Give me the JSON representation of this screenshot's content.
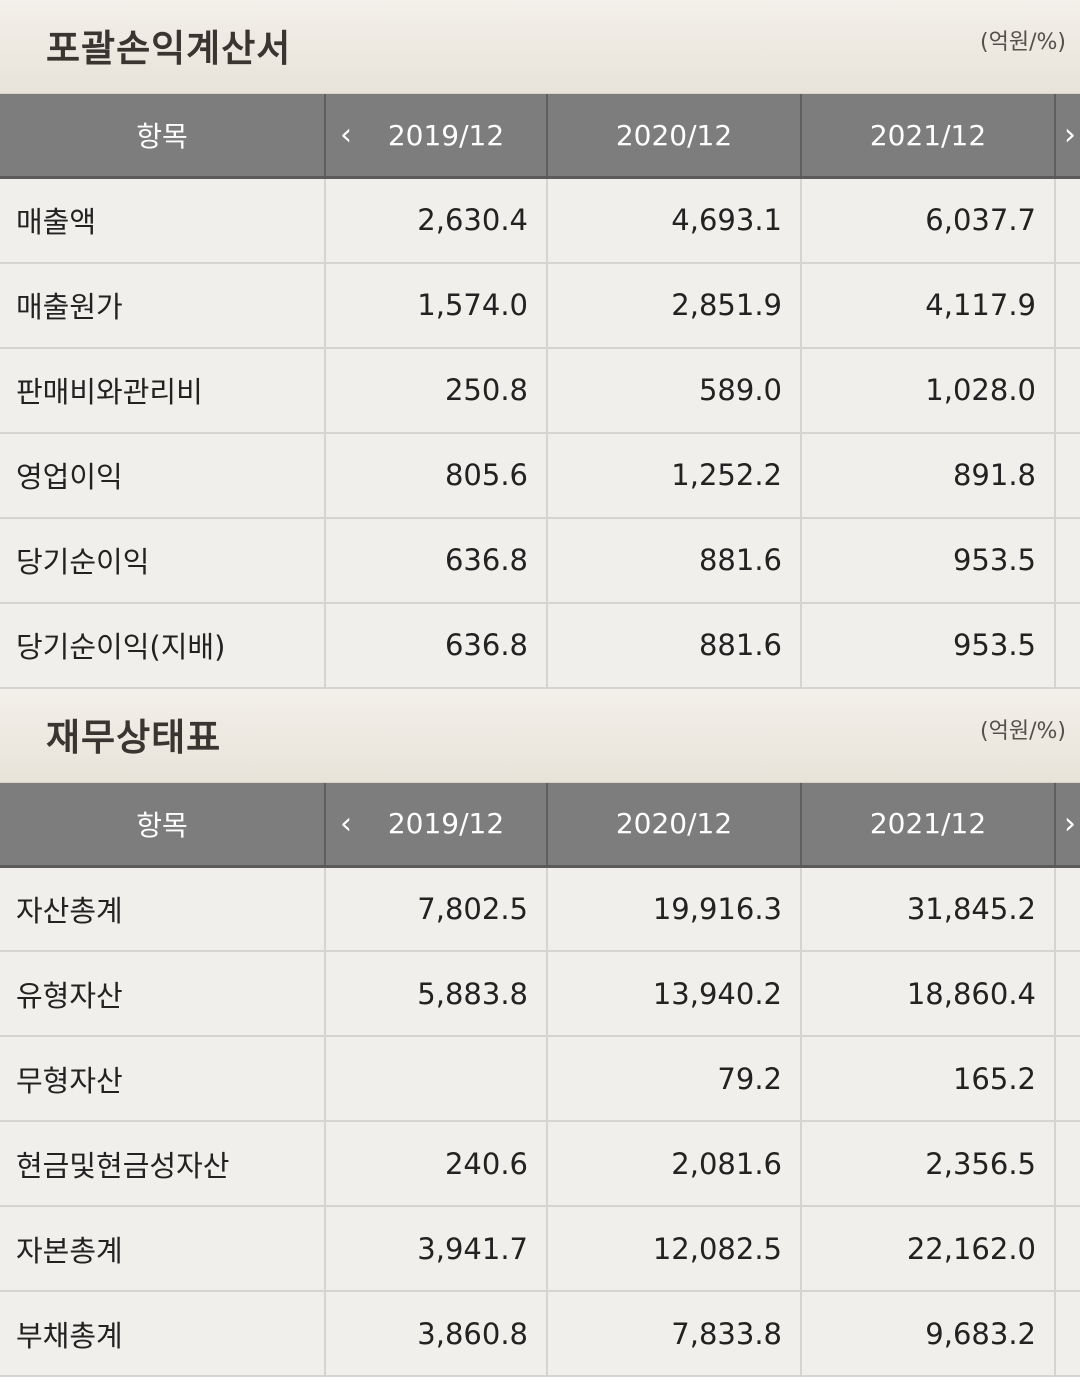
{
  "income_statement": {
    "title": "포괄손익계산서",
    "unit": "(억원/%)",
    "header": {
      "item": "항목",
      "prev_icon": "chevron-left-icon",
      "next_icon": "chevron-right-icon",
      "prev_glyph": "‹",
      "next_glyph": "›",
      "periods": [
        "2019/12",
        "2020/12",
        "2021/12"
      ]
    },
    "rows": [
      {
        "label": "매출액",
        "values": [
          "2,630.4",
          "4,693.1",
          "6,037.7"
        ]
      },
      {
        "label": "매출원가",
        "values": [
          "1,574.0",
          "2,851.9",
          "4,117.9"
        ]
      },
      {
        "label": "판매비와관리비",
        "values": [
          "250.8",
          "589.0",
          "1,028.0"
        ]
      },
      {
        "label": "영업이익",
        "values": [
          "805.6",
          "1,252.2",
          "891.8"
        ]
      },
      {
        "label": "당기순이익",
        "values": [
          "636.8",
          "881.6",
          "953.5"
        ]
      },
      {
        "label": "당기순이익(지배)",
        "values": [
          "636.8",
          "881.6",
          "953.5"
        ]
      }
    ]
  },
  "balance_sheet": {
    "title": "재무상태표",
    "unit": "(억원/%)",
    "header": {
      "item": "항목",
      "prev_icon": "chevron-left-icon",
      "next_icon": "chevron-right-icon",
      "prev_glyph": "‹",
      "next_glyph": "›",
      "periods": [
        "2019/12",
        "2020/12",
        "2021/12"
      ]
    },
    "rows": [
      {
        "label": "자산총계",
        "values": [
          "7,802.5",
          "19,916.3",
          "31,845.2"
        ]
      },
      {
        "label": "유형자산",
        "values": [
          "5,883.8",
          "13,940.2",
          "18,860.4"
        ]
      },
      {
        "label": "무형자산",
        "values": [
          "",
          "79.2",
          "165.2"
        ]
      },
      {
        "label": "현금및현금성자산",
        "values": [
          "240.6",
          "2,081.6",
          "2,356.5"
        ]
      },
      {
        "label": "자본총계",
        "values": [
          "3,941.7",
          "12,082.5",
          "22,162.0"
        ]
      },
      {
        "label": "부채총계",
        "values": [
          "3,860.8",
          "7,833.8",
          "9,683.2"
        ]
      }
    ]
  }
}
